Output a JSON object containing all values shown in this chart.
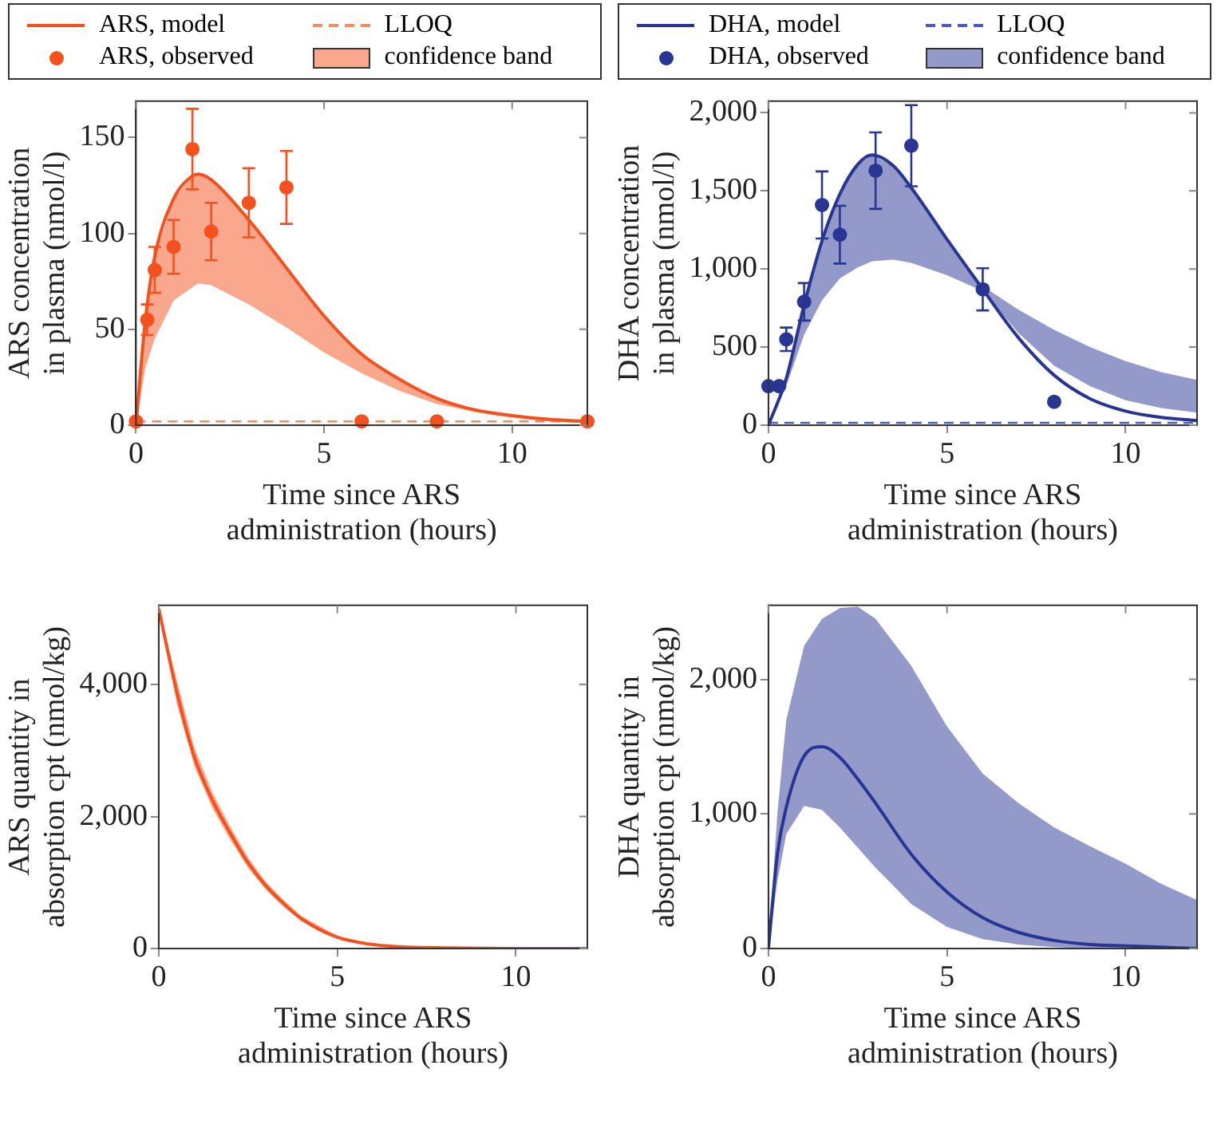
{
  "chart_data": [
    {
      "type": "line",
      "xlabel": "Time since ARS administration (hours)",
      "ylabel": "ARS concentration in plasma (nmol/l)",
      "xlim": [
        0,
        12
      ],
      "xticks": [
        0,
        5,
        10
      ],
      "ylim": [
        0,
        169
      ],
      "yticks": [
        0,
        50,
        100,
        150
      ],
      "legend": "top",
      "annotations": [
        "confidence band"
      ],
      "ref_lines": [
        {
          "axis": "y",
          "value": 2,
          "label": "LLOQ",
          "color": "#f58a5e",
          "line_style": "dashed"
        }
      ],
      "series": [
        {
          "name": "ARS, model",
          "color": "#f4511e",
          "x": [
            0,
            0.25,
            0.5,
            1,
            1.5,
            1.65,
            2,
            3,
            4,
            5,
            6,
            7,
            8,
            9,
            10,
            11,
            12
          ],
          "values": [
            0,
            55,
            88,
            118,
            130,
            131,
            128,
            107,
            82,
            57,
            37,
            24,
            14,
            8,
            5,
            3,
            2
          ],
          "lower": [
            0,
            30,
            45,
            65,
            72,
            74,
            73,
            63,
            51,
            38,
            27,
            18,
            11,
            7,
            4,
            2,
            1
          ],
          "upper": [
            0,
            55,
            88,
            118,
            130,
            131,
            128,
            107,
            82,
            57,
            37,
            24,
            14,
            8,
            5,
            3,
            2
          ]
        },
        {
          "name": "ARS, observed",
          "type": "scatter",
          "marker": "circle",
          "color": "#f4511e",
          "x": [
            0,
            0.3,
            0.5,
            1,
            1.5,
            2,
            3,
            4,
            6,
            8,
            12
          ],
          "values": [
            2,
            55,
            81,
            93,
            144,
            101,
            116,
            124,
            2,
            2,
            2
          ],
          "errors": [
            null,
            8,
            12,
            14,
            21,
            15,
            18,
            19,
            null,
            null,
            null
          ]
        }
      ]
    },
    {
      "type": "line",
      "xlabel": "Time since ARS administration (hours)",
      "ylabel": "DHA concentration in plasma (nmol/l)",
      "xlim": [
        0,
        12
      ],
      "xticks": [
        0,
        5,
        10
      ],
      "ylim": [
        0,
        2075
      ],
      "yticks": [
        0,
        {
          "value": 500,
          "label": "500"
        },
        {
          "value": 1000,
          "label": "1,000"
        },
        {
          "value": 1500,
          "label": "1,500"
        },
        {
          "value": 2000,
          "label": "2,000"
        }
      ],
      "legend": "top",
      "annotations": [
        "confidence band"
      ],
      "ref_lines": [
        {
          "axis": "y",
          "value": 15,
          "label": "LLOQ",
          "color": "#4a5bbf",
          "line_style": "dashed"
        }
      ],
      "series": [
        {
          "name": "DHA, model",
          "color": "#283593",
          "x": [
            0,
            0.5,
            1,
            1.5,
            2,
            2.5,
            2.9,
            3.5,
            4,
            5,
            6,
            7,
            8,
            9,
            10,
            11,
            12
          ],
          "values": [
            0,
            300,
            770,
            1180,
            1480,
            1670,
            1730,
            1660,
            1520,
            1190,
            870,
            560,
            320,
            170,
            90,
            50,
            30
          ],
          "lower": [
            0,
            250,
            580,
            800,
            940,
            1010,
            1050,
            1060,
            1040,
            960,
            860,
            590,
            380,
            250,
            160,
            110,
            80
          ],
          "upper": [
            0,
            300,
            770,
            1180,
            1480,
            1670,
            1730,
            1660,
            1520,
            1190,
            890,
            740,
            610,
            500,
            410,
            340,
            290
          ]
        },
        {
          "name": "DHA, observed",
          "type": "scatter",
          "marker": "circle",
          "color": "#283593",
          "x": [
            0,
            0.3,
            0.5,
            1,
            1.5,
            2,
            3,
            4,
            6,
            8
          ],
          "values": [
            250,
            250,
            550,
            790,
            1410,
            1220,
            1630,
            1790,
            870,
            150
          ],
          "errors": [
            null,
            null,
            75,
            120,
            215,
            185,
            245,
            260,
            135,
            null
          ]
        }
      ]
    },
    {
      "type": "line",
      "xlabel": "Time since ARS administration (hours)",
      "ylabel": "ARS quantity in absorption cpt (nmol/kg)",
      "xlim": [
        0,
        12
      ],
      "xticks": [
        0,
        5,
        10
      ],
      "ylim": [
        0,
        5200
      ],
      "yticks": [
        0,
        {
          "value": 2000,
          "label": "2,000"
        },
        {
          "value": 4000,
          "label": "4,000"
        }
      ],
      "series": [
        {
          "color": "#f4511e",
          "x": [
            0,
            0.5,
            1,
            1.5,
            2,
            2.5,
            3,
            3.5,
            4,
            5,
            6,
            7,
            8,
            10,
            12
          ],
          "values": [
            5150,
            3900,
            2900,
            2250,
            1750,
            1300,
            950,
            680,
            450,
            170,
            60,
            20,
            10,
            0,
            0
          ],
          "lower": [
            5150,
            3720,
            2760,
            2130,
            1650,
            1220,
            890,
            630,
            410,
            150,
            50,
            20,
            10,
            0,
            0
          ],
          "upper": [
            5150,
            4080,
            3040,
            2370,
            1850,
            1380,
            1010,
            730,
            490,
            190,
            70,
            20,
            10,
            0,
            0
          ]
        }
      ]
    },
    {
      "type": "line",
      "xlabel": "Time since ARS administration (hours)",
      "ylabel": "DHA quantity in absorption cpt (nmol/kg)",
      "xlim": [
        0,
        12
      ],
      "xticks": [
        0,
        5,
        10
      ],
      "ylim": [
        0,
        2550
      ],
      "yticks": [
        0,
        {
          "value": 1000,
          "label": "1,000"
        },
        {
          "value": 2000,
          "label": "2,000"
        }
      ],
      "series": [
        {
          "color": "#283593",
          "x": [
            0,
            0.25,
            0.5,
            1,
            1.5,
            2,
            2.5,
            3,
            4,
            5,
            6,
            7,
            8,
            9,
            10,
            11,
            12
          ],
          "values": [
            0,
            700,
            1050,
            1430,
            1500,
            1420,
            1260,
            1080,
            700,
            420,
            230,
            120,
            60,
            30,
            20,
            10,
            0
          ],
          "lower": [
            0,
            500,
            850,
            1060,
            1030,
            900,
            750,
            600,
            330,
            160,
            70,
            30,
            10,
            0,
            0,
            0,
            0
          ],
          "upper": [
            0,
            1000,
            1700,
            2250,
            2450,
            2530,
            2540,
            2450,
            2100,
            1650,
            1300,
            1080,
            900,
            760,
            630,
            480,
            360
          ]
        }
      ]
    }
  ]
}
